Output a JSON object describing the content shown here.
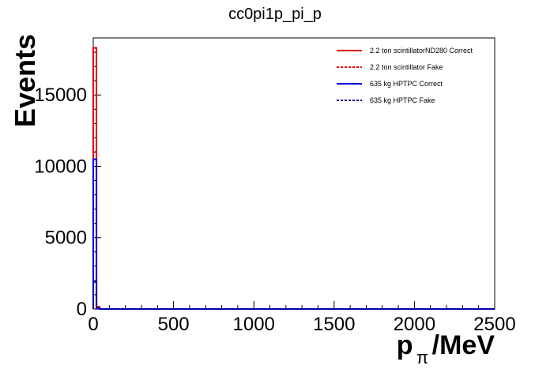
{
  "chart_data": {
    "type": "line",
    "title": "cc0pi1p_pi_p",
    "xlabel_main": "p",
    "xlabel_sub": "π",
    "xlabel_unit": "/MeV",
    "ylabel": "Events",
    "xlim": [
      0,
      2500
    ],
    "ylim": [
      0,
      19000
    ],
    "x_ticks": [
      0,
      500,
      1000,
      1500,
      2000,
      2500
    ],
    "x_tick_labels": [
      "0",
      "500",
      "1000",
      "1500",
      "2000",
      "2500"
    ],
    "y_ticks": [
      0,
      5000,
      10000,
      15000
    ],
    "y_tick_labels": [
      "0",
      "5000",
      "10000",
      "15000"
    ],
    "grid": false,
    "legend_position": "top-right",
    "bin_width": 20,
    "series": [
      {
        "name": "2.2 ton scintillatorND280 Correct",
        "color": "#e00000",
        "dash": "solid",
        "bins": [
          {
            "x0": 0,
            "x1": 20,
            "y": 18300
          },
          {
            "x0": 20,
            "x1": 40,
            "y": 150
          }
        ]
      },
      {
        "name": "2.2 ton scintillator Fake",
        "color": "#e00000",
        "dash": "dashed",
        "bins": [
          {
            "x0": 0,
            "x1": 20,
            "y": 11000
          },
          {
            "x0": 20,
            "x1": 40,
            "y": 100
          }
        ]
      },
      {
        "name": "635 kg HPTPC Correct",
        "color": "#0000e0",
        "dash": "solid",
        "bins": [
          {
            "x0": 0,
            "x1": 20,
            "y": 10500
          },
          {
            "x0": 20,
            "x1": 40,
            "y": 50
          }
        ]
      },
      {
        "name": "635 kg HPTPC Fake",
        "color": "#000090",
        "dash": "dashed",
        "bins": [
          {
            "x0": 0,
            "x1": 20,
            "y": 1900
          },
          {
            "x0": 20,
            "x1": 40,
            "y": 20
          }
        ]
      }
    ]
  }
}
